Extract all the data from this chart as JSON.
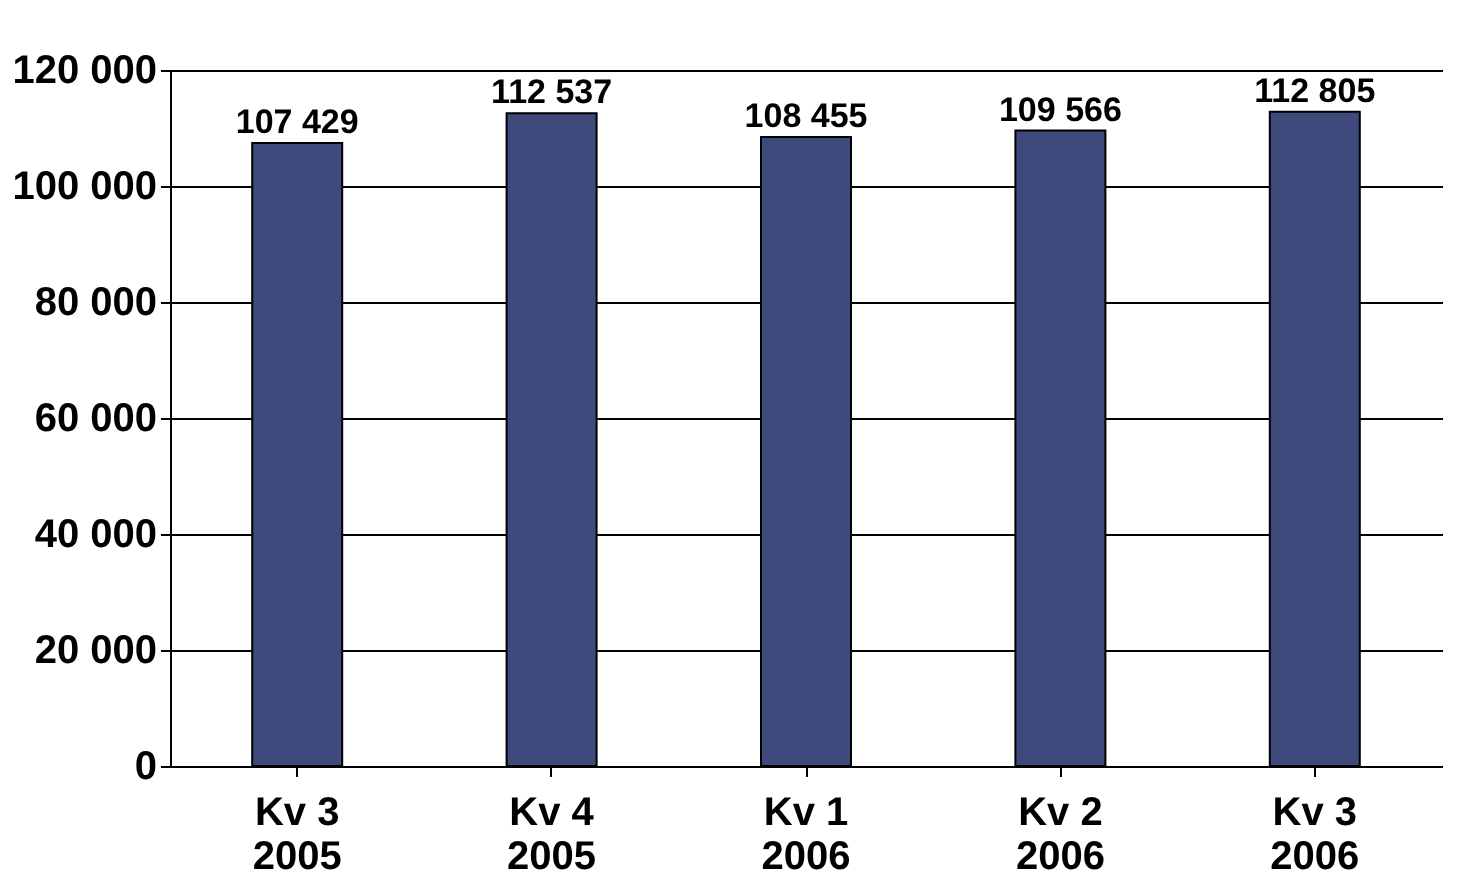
{
  "chart_data": {
    "type": "bar",
    "categories": [
      "Kv 3\n2005",
      "Kv 4\n2005",
      "Kv 1\n2006",
      "Kv 2\n2006",
      "Kv 3\n2006"
    ],
    "values": [
      107429,
      112537,
      108455,
      109566,
      112805
    ],
    "value_labels": [
      "107 429",
      "112 537",
      "108 455",
      "109 566",
      "112 805"
    ],
    "color": "#3f4a7c",
    "ylim": [
      0,
      120000
    ],
    "yticks": [
      {
        "value": 0,
        "label": "0"
      },
      {
        "value": 20000,
        "label": "20 000"
      },
      {
        "value": 40000,
        "label": "40 000"
      },
      {
        "value": 60000,
        "label": "60 000"
      },
      {
        "value": 80000,
        "label": "80 000"
      },
      {
        "value": 100000,
        "label": "100 000"
      },
      {
        "value": 120000,
        "label": "120 000"
      }
    ],
    "grid": "y"
  }
}
